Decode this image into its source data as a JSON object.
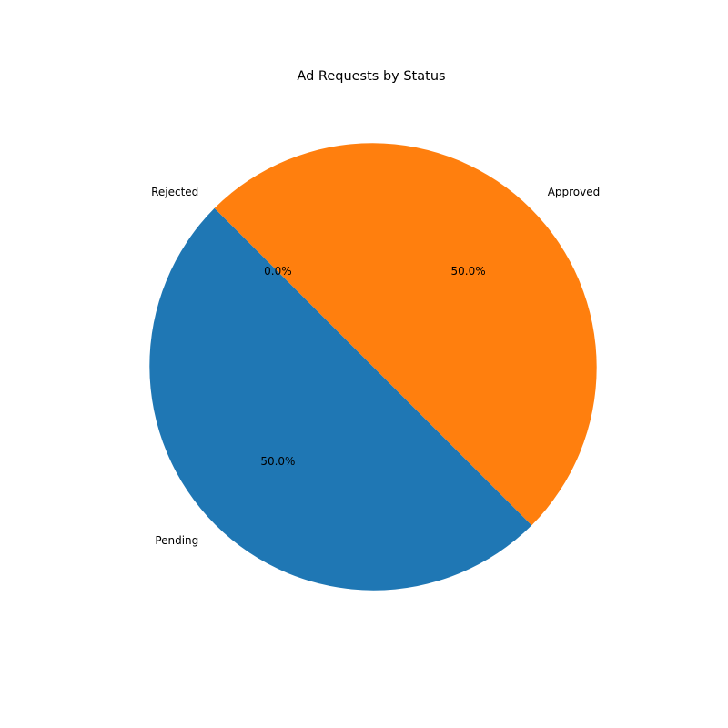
{
  "chart_data": {
    "type": "pie",
    "title": "Ad Requests by Status",
    "categories": [
      "Pending",
      "Approved",
      "Rejected"
    ],
    "values": [
      50.0,
      50.0,
      0.0
    ],
    "percent_labels": [
      "50.0%",
      "50.0%",
      "0.0%"
    ],
    "colors": [
      "#1f77b4",
      "#ff7f0e",
      "#2ca02c"
    ],
    "start_angle_deg": 135,
    "direction": "counterclockwise",
    "legend": "none"
  }
}
